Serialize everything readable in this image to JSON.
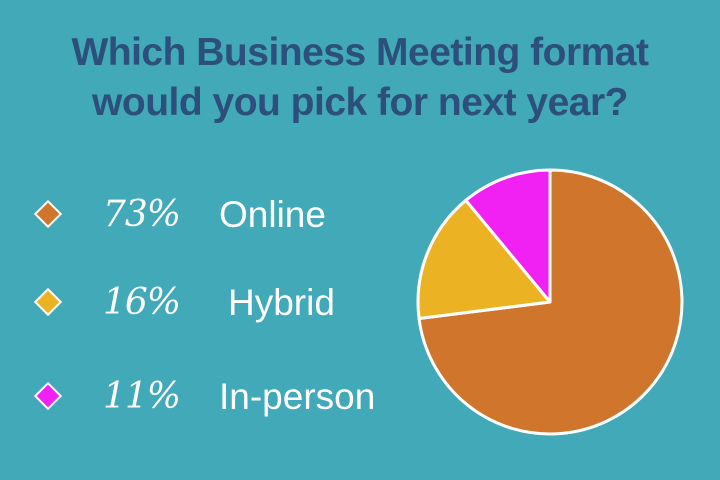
{
  "chart_data": {
    "type": "pie",
    "title": "Which Business Meeting format would you pick for next year?",
    "title_lines": [
      "Which Business Meeting format",
      "would you pick for next year?"
    ],
    "categories": [
      "Online",
      "Hybrid",
      "In-person"
    ],
    "values": [
      73,
      16,
      11
    ],
    "value_labels": [
      "73%",
      "16%",
      "11%"
    ],
    "colors": [
      "#d0762c",
      "#ebb323",
      "#f121f4"
    ],
    "slice_border_color": "#ffffff",
    "legend": "left"
  },
  "colors": {
    "background": "#41a9b7",
    "title": "#2c4f7c",
    "legend_text": "#ffffff"
  }
}
